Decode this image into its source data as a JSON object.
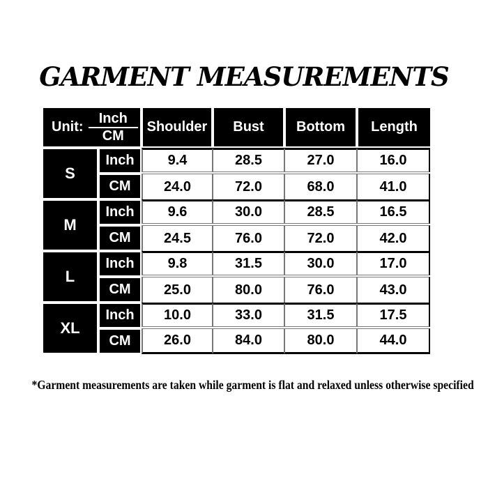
{
  "page": {
    "title": "GARMENT MEASUREMENTS",
    "footnote": "*Garment measurements are taken while garment is flat and relaxed unless otherwise specified"
  },
  "size_chart": {
    "unit_header": {
      "label": "Unit:",
      "numerator": "Inch",
      "denominator": "CM"
    },
    "measure_columns": [
      "Shoulder",
      "Bust",
      "Bottom",
      "Length"
    ],
    "unit_row_labels": [
      "Inch",
      "CM"
    ],
    "sizes": [
      {
        "size": "S",
        "inch": [
          "9.4",
          "28.5",
          "27.0",
          "16.0"
        ],
        "cm": [
          "24.0",
          "72.0",
          "68.0",
          "41.0"
        ]
      },
      {
        "size": "M",
        "inch": [
          "9.6",
          "30.0",
          "28.5",
          "16.5"
        ],
        "cm": [
          "24.5",
          "76.0",
          "72.0",
          "42.0"
        ]
      },
      {
        "size": "L",
        "inch": [
          "9.8",
          "31.5",
          "30.0",
          "17.0"
        ],
        "cm": [
          "25.0",
          "80.0",
          "76.0",
          "43.0"
        ]
      },
      {
        "size": "XL",
        "inch": [
          "10.0",
          "33.0",
          "31.5",
          "17.5"
        ],
        "cm": [
          "26.0",
          "84.0",
          "80.0",
          "44.0"
        ]
      }
    ]
  },
  "colors": {
    "cell_bg": "#000000",
    "cell_text": "#ffffff",
    "data_text": "#000000",
    "thin_line": "#777777",
    "thick_line": "#000000",
    "background": "#ffffff"
  }
}
